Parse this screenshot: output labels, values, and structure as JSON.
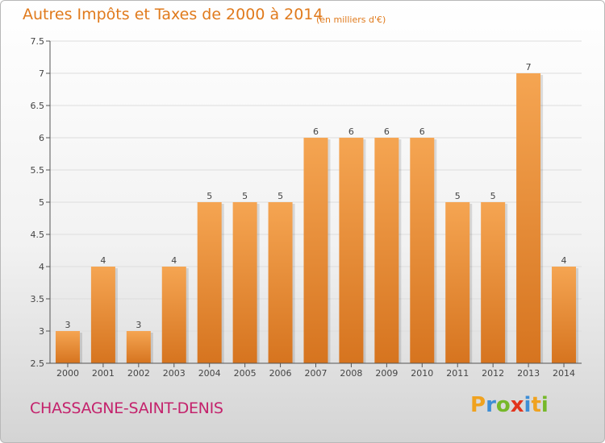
{
  "title": "Autres Impôts et Taxes de 2000 à 2014",
  "subtitle": "(en milliers d'€)",
  "commune": "CHASSAGNE-SAINT-DENIS",
  "brand": {
    "letters": [
      "P",
      "r",
      "o",
      "x",
      "i",
      "t",
      "i"
    ],
    "colors": [
      "#f0a21f",
      "#3e8ed6",
      "#76b82a",
      "#e2341d",
      "#3e8ed6",
      "#f0a21f",
      "#76b82a"
    ]
  },
  "colors": {
    "bar_top": "#f5a552",
    "bar_bottom": "#d6741f",
    "title": "#e07a1c",
    "commune": "#c4226c",
    "grid": "#dddddd"
  },
  "chart_data": {
    "type": "bar",
    "categories": [
      "2000",
      "2001",
      "2002",
      "2003",
      "2004",
      "2005",
      "2006",
      "2007",
      "2008",
      "2009",
      "2010",
      "2011",
      "2012",
      "2013",
      "2014"
    ],
    "values": [
      3,
      4,
      3,
      4,
      5,
      5,
      5,
      6,
      6,
      6,
      6,
      5,
      5,
      7,
      4
    ],
    "data_labels": [
      "3",
      "4",
      "3",
      "4",
      "5",
      "5",
      "5",
      "6",
      "6",
      "6",
      "6",
      "5",
      "5",
      "7",
      "4"
    ],
    "yticks": [
      "2.5",
      "3",
      "3.5",
      "4",
      "4.5",
      "5",
      "5.5",
      "6",
      "6.5",
      "7",
      "7.5"
    ],
    "ylim": [
      2.5,
      7.5
    ],
    "grid": true
  }
}
